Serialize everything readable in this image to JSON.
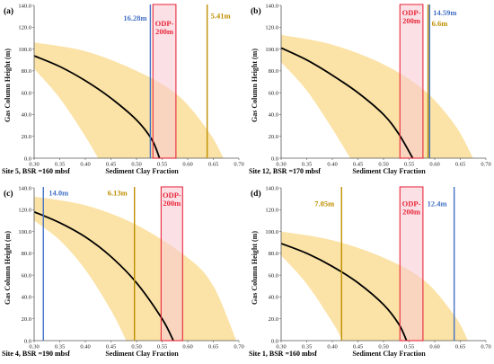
{
  "chart_data": [
    {
      "type": "line",
      "panel": "(a)",
      "site": "Site 5, BSR =160 mbsf",
      "xlabel": "Sediment Clay Fraction",
      "ylabel": "Gas Column Height (m)",
      "xlim": [
        0.3,
        0.7
      ],
      "ylim": [
        0,
        140
      ],
      "x_ticks": [
        "0.30",
        "0.35",
        "0.40",
        "0.45",
        "0.50",
        "0.55",
        "0.60",
        "0.65",
        "0.70"
      ],
      "y_ticks": [
        "0.0",
        "20.0",
        "40.0",
        "60.0",
        "80.0",
        "100.0",
        "120.0",
        "140.0"
      ],
      "curve": {
        "x": [
          0.3,
          0.35,
          0.4,
          0.45,
          0.5,
          0.53,
          0.545
        ],
        "y": [
          93.8,
          84,
          71,
          55,
          35,
          17,
          0
        ]
      },
      "band_upper": {
        "x": [
          0.3,
          0.4,
          0.5,
          0.58,
          0.64,
          0.67
        ],
        "y": [
          106,
          98,
          80,
          58,
          25,
          0
        ]
      },
      "band_lower": {
        "x": [
          0.3,
          0.35,
          0.4,
          0.425
        ],
        "y": [
          82,
          55,
          20,
          0
        ]
      },
      "verticals": [
        {
          "label": "16.28m",
          "x": 0.527,
          "color": "#4472c4"
        },
        {
          "label": "5.41m",
          "x": 0.638,
          "color": "#bf8f00"
        }
      ],
      "odp_box": {
        "label": "ODP-\n200m",
        "x": [
          0.532,
          0.577
        ],
        "color": "#e8283c"
      }
    },
    {
      "type": "line",
      "panel": "(b)",
      "site": "Site 12, BSR =170 mbsf",
      "xlabel": "Sediment Clay Fraction",
      "ylabel": "Gas Column Height (m)",
      "xlim": [
        0.3,
        0.7
      ],
      "ylim": [
        0,
        140
      ],
      "x_ticks": [
        "0.30",
        "0.35",
        "0.40",
        "0.45",
        "0.50",
        "0.55",
        "0.60",
        "0.65",
        "0.70"
      ],
      "y_ticks": [
        "0.0",
        "20.0",
        "40.0",
        "60.0",
        "80.0",
        "100.0",
        "120.0",
        "140.0"
      ],
      "curve": {
        "x": [
          0.3,
          0.35,
          0.4,
          0.45,
          0.5,
          0.53,
          0.557
        ],
        "y": [
          101,
          90,
          76,
          60,
          40,
          22,
          0
        ]
      },
      "band_upper": {
        "x": [
          0.3,
          0.4,
          0.5,
          0.58,
          0.64,
          0.675
        ],
        "y": [
          113,
          104,
          86,
          62,
          30,
          0
        ]
      },
      "band_lower": {
        "x": [
          0.3,
          0.35,
          0.4,
          0.435
        ],
        "y": [
          88,
          62,
          27,
          0
        ]
      },
      "verticals": [
        {
          "label": "14.59m",
          "x": 0.59,
          "color": "#4472c4"
        },
        {
          "label": "6.6m",
          "x": 0.587,
          "color": "#bf8f00"
        }
      ],
      "odp_box": {
        "label": "ODP-\n200m",
        "x": [
          0.532,
          0.577
        ],
        "color": "#e8283c"
      }
    },
    {
      "type": "line",
      "panel": "(c)",
      "site": "Site 4, BSR =190 mbsf",
      "xlabel": "Sediment Clay Fraction",
      "ylabel": "Gas Column Height (m)",
      "xlim": [
        0.3,
        0.7
      ],
      "ylim": [
        0,
        140
      ],
      "x_ticks": [
        "0.30",
        "0.35",
        "0.40",
        "0.45",
        "0.50",
        "0.55",
        "0.60",
        "0.65",
        "0.70"
      ],
      "y_ticks": [
        "0.0",
        "20.0",
        "40.0",
        "60.0",
        "80.0",
        "100.0",
        "120.0",
        "140.0"
      ],
      "curve": {
        "x": [
          0.3,
          0.35,
          0.4,
          0.45,
          0.5,
          0.55,
          0.572
        ],
        "y": [
          118,
          108,
          95,
          77,
          53,
          20,
          0
        ]
      },
      "band_upper": {
        "x": [
          0.3,
          0.4,
          0.5,
          0.6,
          0.65,
          0.695
        ],
        "y": [
          132,
          124,
          106,
          76,
          50,
          0
        ]
      },
      "band_lower": {
        "x": [
          0.3,
          0.35,
          0.4,
          0.45,
          0.48
        ],
        "y": [
          110,
          92,
          65,
          28,
          0
        ]
      },
      "verticals": [
        {
          "label": "14.0m",
          "x": 0.318,
          "color": "#4472c4"
        },
        {
          "label": "6.13m",
          "x": 0.496,
          "color": "#bf8f00"
        }
      ],
      "odp_box": {
        "label": "ODP-\n200m",
        "x": [
          0.548,
          0.59
        ],
        "color": "#e8283c"
      }
    },
    {
      "type": "line",
      "panel": "(d)",
      "site": "Site 1, BSR =160 mbsf",
      "xlabel": "Sediment Clay Fraction",
      "ylabel": "Gas Column Height (m)",
      "xlim": [
        0.3,
        0.7
      ],
      "ylim": [
        0,
        140
      ],
      "x_ticks": [
        "0.30",
        "0.35",
        "0.40",
        "0.45",
        "0.50",
        "0.55",
        "0.60",
        "0.65",
        "0.70"
      ],
      "y_ticks": [
        "0.0",
        "20.0",
        "40.0",
        "60.0",
        "80.0",
        "100.0",
        "120.0",
        "140.0"
      ],
      "curve": {
        "x": [
          0.3,
          0.35,
          0.4,
          0.45,
          0.5,
          0.53,
          0.545
        ],
        "y": [
          89,
          80,
          68,
          53,
          33,
          15,
          0
        ]
      },
      "band_upper": {
        "x": [
          0.3,
          0.4,
          0.5,
          0.58,
          0.64,
          0.665
        ],
        "y": [
          100,
          92,
          76,
          55,
          22,
          0
        ]
      },
      "band_lower": {
        "x": [
          0.3,
          0.35,
          0.4,
          0.42
        ],
        "y": [
          78,
          52,
          17,
          0
        ]
      },
      "verticals": [
        {
          "label": "7.05m",
          "x": 0.418,
          "color": "#bf8f00"
        },
        {
          "label": "12.4m",
          "x": 0.638,
          "color": "#4472c4"
        }
      ],
      "odp_box": {
        "label": "ODP-\n200m",
        "x": [
          0.532,
          0.577
        ],
        "color": "#e8283c"
      }
    }
  ],
  "colors": {
    "band": "#fbe2a6",
    "overlap": "#f3b9a6",
    "curve": "#000000",
    "odp_fill": "#f8c8d2"
  }
}
